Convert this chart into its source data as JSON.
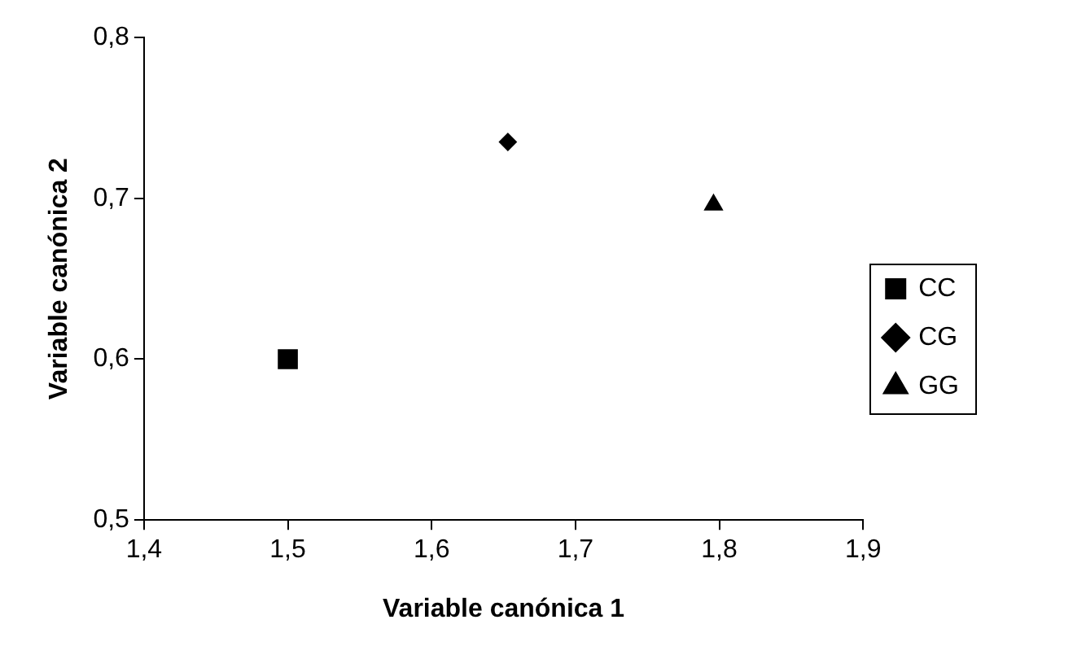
{
  "chart_data": {
    "type": "scatter",
    "xlabel": "Variable canónica 1",
    "ylabel": "Variable canónica 2",
    "xlim": [
      1.4,
      1.9
    ],
    "xticks": [
      {
        "value": 1.4,
        "label": "1,4"
      },
      {
        "value": 1.5,
        "label": "1,5"
      },
      {
        "value": 1.6,
        "label": "1,6"
      },
      {
        "value": 1.7,
        "label": "1,7"
      },
      {
        "value": 1.8,
        "label": "1,8"
      },
      {
        "value": 1.9,
        "label": "1,9"
      }
    ],
    "ylim": [
      0.5,
      0.8
    ],
    "yticks": [
      {
        "value": 0.5,
        "label": "0,5"
      },
      {
        "value": 0.6,
        "label": "0,6"
      },
      {
        "value": 0.7,
        "label": "0,7"
      },
      {
        "value": 0.8,
        "label": "0,8"
      }
    ],
    "grid": false,
    "legend": "right",
    "series": [
      {
        "name": "CC",
        "color": "#000000",
        "marker": "square",
        "x": [
          1.5
        ],
        "values": [
          0.6
        ]
      },
      {
        "name": "CG",
        "color": "#000000",
        "marker": "diamond",
        "x": [
          1.653
        ],
        "values": [
          0.735
        ]
      },
      {
        "name": "GG",
        "color": "#000000",
        "marker": "triangle",
        "x": [
          1.796
        ],
        "values": [
          0.696
        ]
      }
    ]
  }
}
